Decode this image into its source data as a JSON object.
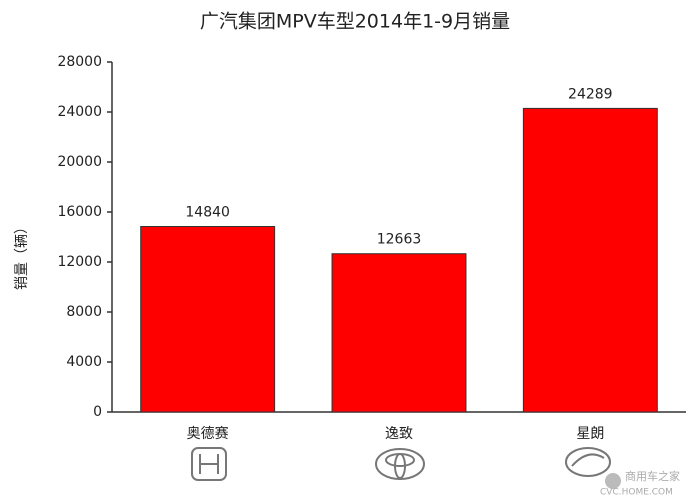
{
  "chart_data": {
    "type": "bar",
    "title": "广汽集团MPV车型2014年1-9月销量",
    "y_label": "销量（辆）",
    "categories": [
      "奥德赛",
      "逸致",
      "星朗"
    ],
    "values": [
      14840,
      12663,
      24289
    ],
    "color": "#ff0000",
    "ylim": [
      0,
      28000
    ],
    "yticks": [
      0,
      4000,
      8000,
      12000,
      16000,
      20000,
      24000,
      28000
    ],
    "grid": false,
    "watermark": [
      "商用车之家",
      "CVC.HOME.COM"
    ]
  }
}
